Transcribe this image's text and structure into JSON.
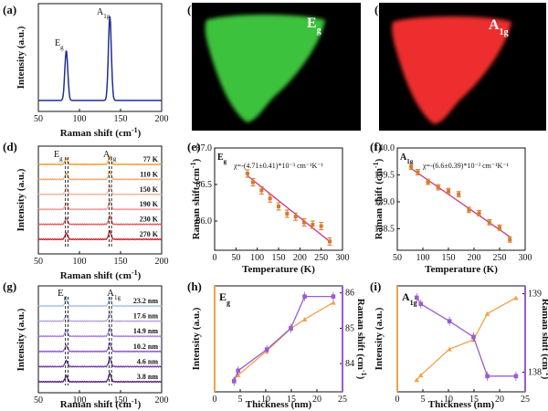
{
  "figure": {
    "panel_labels": [
      "(a)",
      "(b)",
      "(c)",
      "(d)",
      "(e)",
      "(f)",
      "(g)",
      "(h)",
      "(i)"
    ],
    "mode_labels": {
      "eg_main": "E",
      "eg_sub": "g",
      "a1g_main": "A",
      "a1g_sub": "1g"
    },
    "colors": {
      "blue": "#1f2f8f",
      "green": "#3ec23e",
      "red": "#ee2f2f",
      "orange": "#f0a24a",
      "purple": "#9a5bd0",
      "fitline": "#d0408a",
      "eline": "#d67a2a"
    }
  },
  "chart_data": [
    {
      "panel": "(a)",
      "type": "line",
      "xlabel": "Raman shift (cm-1)",
      "ylabel": "Intensity (a.u.)",
      "xlim": [
        50,
        200
      ],
      "xticks": [
        50,
        100,
        150,
        200
      ],
      "peaks": [
        {
          "x": 84,
          "height": 0.55,
          "label": "Eg"
        },
        {
          "x": 137,
          "height": 0.92,
          "label": "A1g"
        }
      ]
    },
    {
      "panel": "(d)",
      "type": "line",
      "xlabel": "Raman shift (cm-1)",
      "ylabel": "Intensity (a.u.)",
      "xlim": [
        50,
        200
      ],
      "xticks": [
        50,
        100,
        150,
        200
      ],
      "series": [
        {
          "name": "77 K",
          "color": "#e8a33a"
        },
        {
          "name": "110 K",
          "color": "#f2a96a"
        },
        {
          "name": "150 K",
          "color": "#f4b7a0"
        },
        {
          "name": "190 K",
          "color": "#ef9a92"
        },
        {
          "name": "230 K",
          "color": "#e0595b"
        },
        {
          "name": "270 K",
          "color": "#c81e24"
        }
      ]
    },
    {
      "panel": "(e)",
      "type": "scatter",
      "xlabel": "Temperature (K)",
      "ylabel": "Raman shift (cm-1)",
      "xlim": [
        0,
        300
      ],
      "ylim": [
        85.6,
        87.0
      ],
      "xticks": [
        0,
        50,
        100,
        150,
        200,
        250,
        300
      ],
      "yticks": [
        85.5,
        86.0,
        86.5,
        87.0
      ],
      "annotation": "χ=-(4.71±0.41)*10⁻³ cm⁻¹K⁻¹",
      "x": [
        77,
        90,
        110,
        130,
        150,
        170,
        190,
        210,
        230,
        250,
        270
      ],
      "y": [
        86.65,
        86.53,
        86.42,
        86.31,
        86.2,
        86.1,
        86.06,
        85.98,
        85.95,
        85.93,
        85.72
      ],
      "err": [
        0.05,
        0.05,
        0.05,
        0.05,
        0.05,
        0.05,
        0.05,
        0.05,
        0.05,
        0.05,
        0.05
      ],
      "fit": {
        "x": [
          77,
          270
        ],
        "y": [
          86.62,
          85.72
        ]
      }
    },
    {
      "panel": "(f)",
      "type": "scatter",
      "xlabel": "Temperature (K)",
      "ylabel": "Raman shift (cm-1)",
      "xlim": [
        50,
        300
      ],
      "ylim": [
        138.1,
        140.0
      ],
      "xticks": [
        50,
        100,
        150,
        200,
        250,
        300
      ],
      "yticks": [
        138.0,
        138.5,
        139.0,
        139.5,
        140.0
      ],
      "annotation": "χ=-(6.6±0.39)*10⁻³ cm⁻¹K⁻¹",
      "x": [
        77,
        90,
        110,
        130,
        150,
        170,
        190,
        210,
        230,
        250,
        270
      ],
      "y": [
        139.65,
        139.55,
        139.37,
        139.27,
        139.2,
        139.14,
        138.85,
        138.79,
        138.62,
        138.52,
        138.3
      ],
      "err": [
        0.05,
        0.05,
        0.05,
        0.05,
        0.05,
        0.05,
        0.05,
        0.05,
        0.05,
        0.05,
        0.05
      ],
      "fit": {
        "x": [
          77,
          270
        ],
        "y": [
          139.62,
          138.35
        ]
      }
    },
    {
      "panel": "(g)",
      "type": "line",
      "xlabel": "Raman shift (cm-1)",
      "ylabel": "Intensity (a.u.)",
      "xlim": [
        50,
        200
      ],
      "xticks": [
        50,
        100,
        150,
        200
      ],
      "series": [
        {
          "name": "23.2 nm",
          "color": "#a8c2ea"
        },
        {
          "name": "17.6 nm",
          "color": "#b6a6e0"
        },
        {
          "name": "14.9 nm",
          "color": "#a783d4"
        },
        {
          "name": "10.2 nm",
          "color": "#8e5cc2"
        },
        {
          "name": "4.6 nm",
          "color": "#6f3aa5"
        },
        {
          "name": "3.8 nm",
          "color": "#4f1f7a"
        }
      ]
    },
    {
      "panel": "(h)",
      "type": "line",
      "xlabel": "Thickness (nm)",
      "ylabel": "Intensity (a.u.)",
      "ylabel_right": "Raman shift (cm-1)",
      "xlim": [
        0,
        25
      ],
      "xticks": [
        0,
        5,
        10,
        15,
        20,
        25
      ],
      "y2lim": [
        83.2,
        86.2
      ],
      "y2ticks": [
        84,
        85,
        86
      ],
      "x": [
        3.8,
        4.6,
        10.2,
        14.9,
        17.6,
        23.2
      ],
      "intensity": [
        0.08,
        0.12,
        0.38,
        0.62,
        0.72,
        0.9
      ],
      "shift": [
        83.5,
        83.8,
        84.4,
        85.0,
        85.9,
        85.9
      ]
    },
    {
      "panel": "(i)",
      "type": "line",
      "xlabel": "Thickness (nm)",
      "ylabel": "Intensity (a.u.)",
      "ylabel_right": "Raman shift (cm-1)",
      "xlim": [
        0,
        25
      ],
      "xticks": [
        0,
        5,
        10,
        15,
        20,
        25
      ],
      "y2lim": [
        137.75,
        139.1
      ],
      "y2ticks": [
        138,
        139
      ],
      "x": [
        3.8,
        4.6,
        10.2,
        14.9,
        17.6,
        23.2
      ],
      "intensity": [
        0.07,
        0.12,
        0.4,
        0.5,
        0.78,
        0.95
      ],
      "shift": [
        138.95,
        138.87,
        138.65,
        138.45,
        137.95,
        137.95
      ]
    }
  ]
}
